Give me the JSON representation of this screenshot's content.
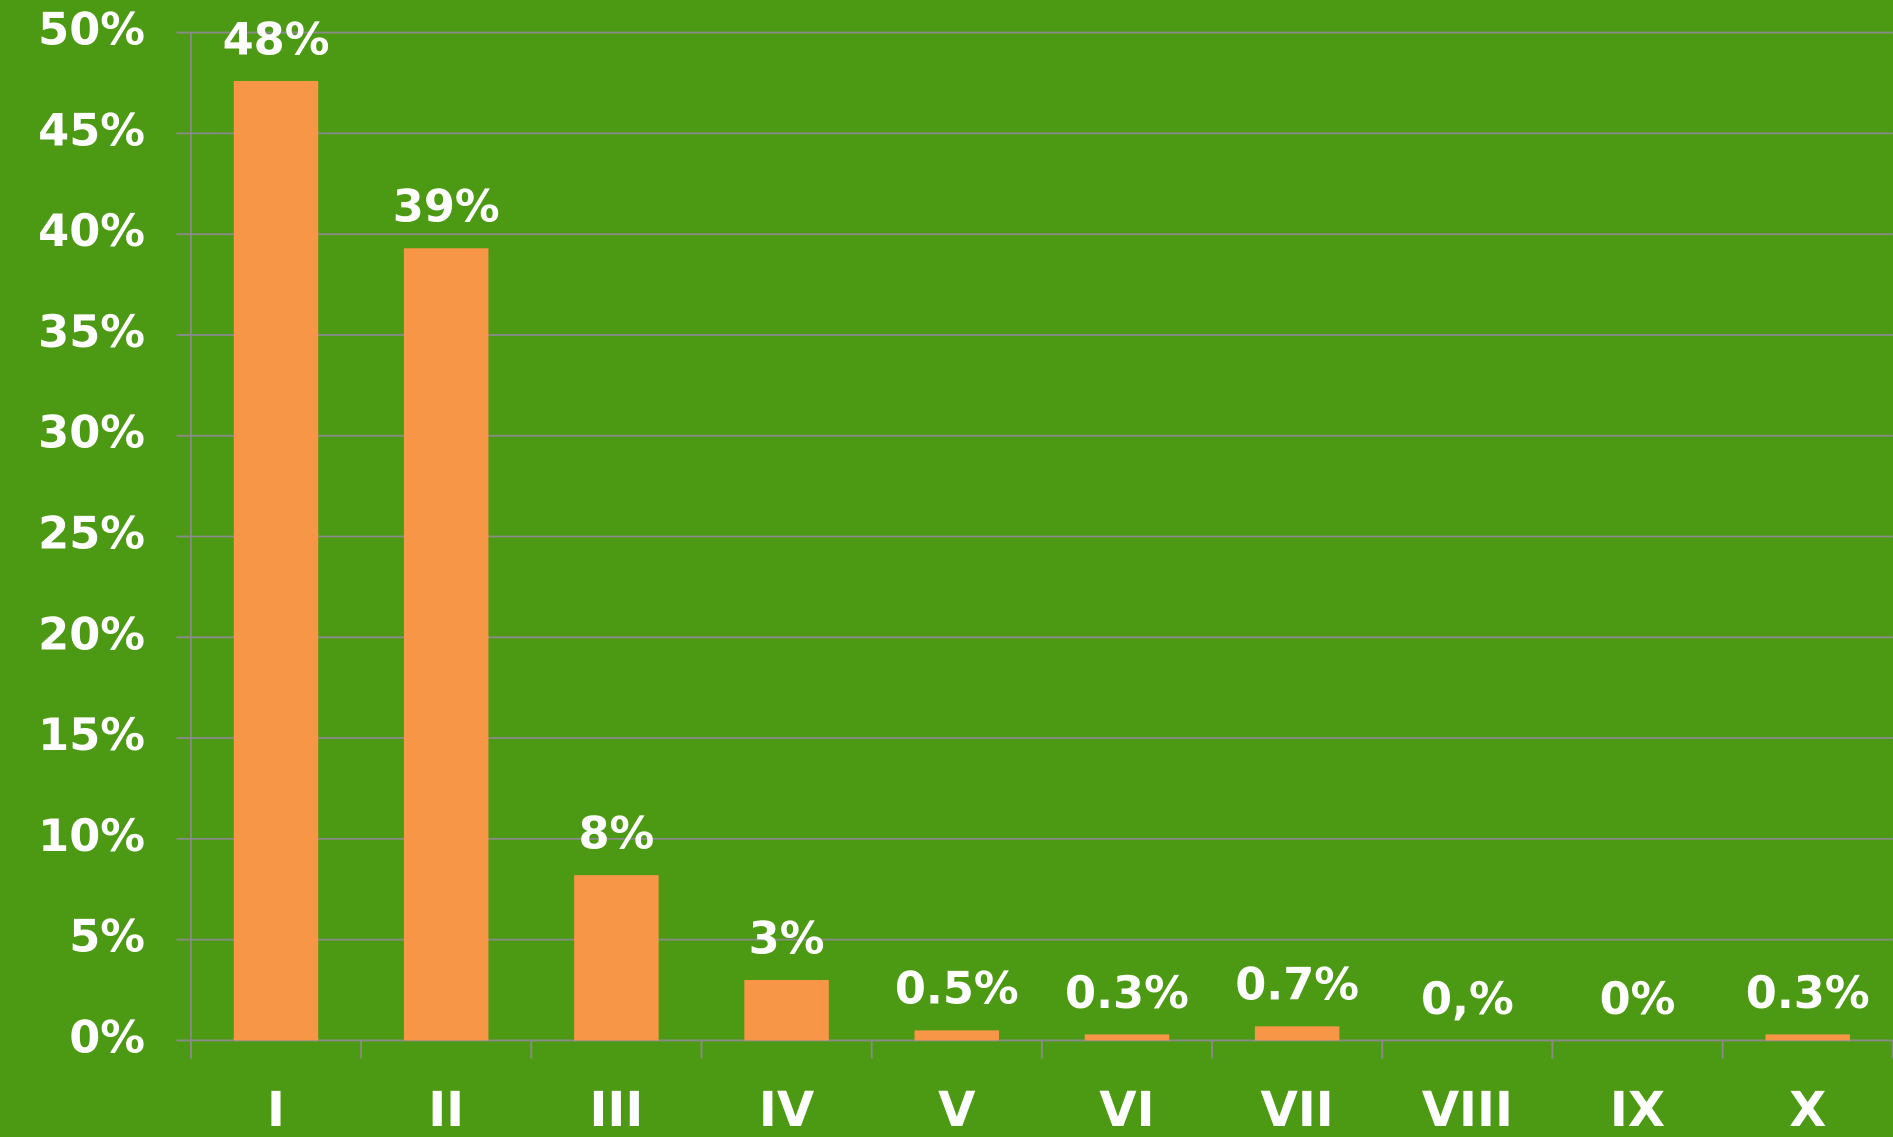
{
  "chart_data": {
    "type": "bar",
    "categories": [
      "I",
      "II",
      "III",
      "IV",
      "V",
      "VI",
      "VII",
      "VIII",
      "IX",
      "X"
    ],
    "values": [
      47.6,
      39.3,
      8.2,
      3.0,
      0.5,
      0.3,
      0.7,
      0,
      0,
      0.3
    ],
    "value_labels": [
      "48%",
      "39%",
      "8%",
      "3%",
      "0.5%",
      "0.3%",
      "0.7%",
      "0,%",
      "0%",
      "0.3%"
    ],
    "color": "#f79646",
    "ylim": [
      0,
      50
    ],
    "yticks": [
      {
        "value": 0,
        "label": "0%"
      },
      {
        "value": 5,
        "label": "5%"
      },
      {
        "value": 10,
        "label": "10%"
      },
      {
        "value": 15,
        "label": "15%"
      },
      {
        "value": 20,
        "label": "20%"
      },
      {
        "value": 25,
        "label": "25%"
      },
      {
        "value": 30,
        "label": "30%"
      },
      {
        "value": 35,
        "label": "35%"
      },
      {
        "value": 40,
        "label": "40%"
      },
      {
        "value": 45,
        "label": "45%"
      },
      {
        "value": 50,
        "label": "50%"
      }
    ],
    "grid": true
  }
}
